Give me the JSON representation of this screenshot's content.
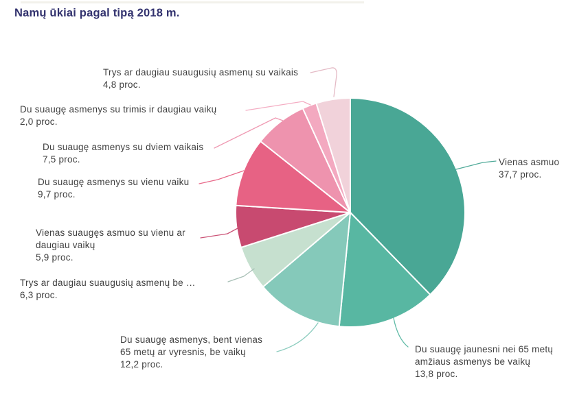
{
  "chart_data": {
    "type": "pie",
    "title": "Namų ūkiai pagal tipą 2018 m.",
    "unit_suffix": "proc.",
    "direction": "clockwise",
    "start_angle_deg": 0,
    "legend_position": "callout-labels",
    "slices": [
      {
        "label": "Vienas asmuo",
        "label_lines": [
          "Vienas asmuo"
        ],
        "value": 37.7,
        "value_text": "37,7 proc.",
        "color": "#49a795"
      },
      {
        "label": "Du suaugę jaunesni nei 65 metų amžiaus asmenys be vaikų",
        "label_lines": [
          "Du suaugę jaunesni nei 65 metų",
          "amžiaus asmenys be vaikų"
        ],
        "value": 13.8,
        "value_text": "13,8 proc.",
        "color": "#58b7a2"
      },
      {
        "label": "Du suaugę asmenys, bent vienas 65 metų ar vyresnis, be vaikų",
        "label_lines": [
          "Du suaugę asmenys, bent vienas",
          "65 metų ar vyresnis, be vaikų"
        ],
        "value": 12.2,
        "value_text": "12,2 proc.",
        "color": "#85c9ba"
      },
      {
        "label": "Trys ar daugiau suaugusių asmenų be …",
        "label_lines": [
          "Trys ar daugiau suaugusių asmenų be …"
        ],
        "value": 6.3,
        "value_text": "6,3 proc.",
        "color": "#c6e0cf"
      },
      {
        "label": "Vienas suaugęs asmuo su vienu ar daugiau vaikų",
        "label_lines": [
          "Vienas suaugęs asmuo su vienu ar",
          "daugiau vaikų"
        ],
        "value": 5.9,
        "value_text": "5,9 proc.",
        "color": "#c84a70"
      },
      {
        "label": "Du suaugę asmenys su vienu vaiku",
        "label_lines": [
          "Du suaugę asmenys su vienu vaiku"
        ],
        "value": 9.7,
        "value_text": "9,7 proc.",
        "color": "#e76284"
      },
      {
        "label": "Du suaugę asmenys su dviem vaikais",
        "label_lines": [
          "Du suaugę asmenys su dviem vaikais"
        ],
        "value": 7.5,
        "value_text": "7,5 proc.",
        "color": "#ee93ae"
      },
      {
        "label": "Du suaugę asmenys su trimis ir daugiau vaikų",
        "label_lines": [
          "Du suaugę asmenys su trimis ir daugiau vaikų"
        ],
        "value": 2.0,
        "value_text": "2,0 proc.",
        "color": "#f3a9c0"
      },
      {
        "label": "Trys ar daugiau suaugusių asmenų su vaikais",
        "label_lines": [
          "Trys ar daugiau suaugusių asmenų su vaikais"
        ],
        "value": 4.8,
        "value_text": "4,8 proc.",
        "color": "#f1d2da"
      }
    ],
    "colors": {
      "title": "#32326e",
      "label_text": "#404040",
      "slice_border": "#ffffff",
      "background": "#ffffff"
    }
  }
}
